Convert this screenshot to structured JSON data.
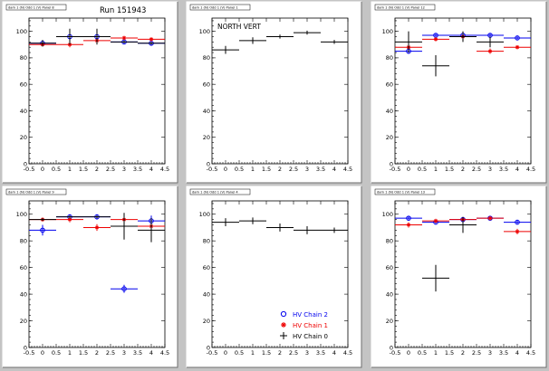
{
  "page": {
    "run_label": "Run 151943"
  },
  "legend": {
    "entries": [
      {
        "label": "HV Chain 2",
        "color": "#0000ee",
        "marker": "open-circle"
      },
      {
        "label": "HV Chain 1",
        "color": "#ee0000",
        "marker": "star"
      },
      {
        "label": "HV Chain 0",
        "color": "#000000",
        "marker": "cross"
      }
    ]
  },
  "chart_data": [
    {
      "type": "scatter",
      "title": "dam 1 (N) Odd 1 (V) Panel 8",
      "xlim": [
        -0.5,
        4.5
      ],
      "ylim": [
        0,
        110
      ],
      "xticks": [
        -0.5,
        0,
        0.5,
        1,
        1.5,
        2,
        2.5,
        3,
        3.5,
        4,
        4.5
      ],
      "yticks": [
        0,
        20,
        40,
        60,
        80,
        100
      ],
      "annotation": "",
      "series": [
        {
          "name": "HV Chain 2",
          "color": "#0000ee",
          "marker": "open-circle",
          "points": [
            [
              0,
              91,
              0.5,
              1.5
            ],
            [
              1,
              96,
              0.5,
              2
            ],
            [
              2,
              96,
              0.5,
              2
            ],
            [
              3,
              92,
              0.5,
              1.5
            ],
            [
              4,
              91,
              0.5,
              1.5
            ]
          ]
        },
        {
          "name": "HV Chain 1",
          "color": "#ee0000",
          "marker": "star",
          "points": [
            [
              0,
              90,
              0.5,
              1.5
            ],
            [
              1,
              90,
              0.5,
              2
            ],
            [
              2,
              93,
              0.5,
              1.5
            ],
            [
              3,
              95,
              0.5,
              1.5
            ],
            [
              4,
              94,
              0.5,
              1.5
            ]
          ]
        },
        {
          "name": "HV Chain 0",
          "color": "#000000",
          "marker": "cross",
          "points": [
            [
              0,
              91,
              0.5,
              2.5
            ],
            [
              1,
              96,
              0.5,
              6
            ],
            [
              2,
              96,
              0.5,
              6
            ],
            [
              3,
              92,
              0.5,
              1
            ],
            [
              4,
              91,
              0.5,
              1
            ]
          ]
        }
      ]
    },
    {
      "type": "scatter",
      "title": "dam 1 (N) Odd 1 (V) Panel 1",
      "xlim": [
        -0.5,
        4.5
      ],
      "ylim": [
        0,
        110
      ],
      "xticks": [
        -0.5,
        0,
        0.5,
        1,
        1.5,
        2,
        2.5,
        3,
        3.5,
        4,
        4.5
      ],
      "yticks": [
        0,
        20,
        40,
        60,
        80,
        100
      ],
      "annotation": "NORTH VERT",
      "series": [
        {
          "name": "HV Chain 0",
          "color": "#000000",
          "marker": "cross",
          "points": [
            [
              0,
              86,
              0.5,
              3
            ],
            [
              1,
              93,
              0.5,
              2.5
            ],
            [
              2,
              96,
              0.5,
              1.5
            ],
            [
              3,
              99,
              0.5,
              1.5
            ],
            [
              4,
              92,
              0.5,
              1.5
            ]
          ]
        }
      ]
    },
    {
      "type": "scatter",
      "title": "dam 1 (N) Odd 1 (V) Panel 12",
      "xlim": [
        -0.5,
        4.5
      ],
      "ylim": [
        0,
        110
      ],
      "xticks": [
        -0.5,
        0,
        0.5,
        1,
        1.5,
        2,
        2.5,
        3,
        3.5,
        4,
        4.5
      ],
      "yticks": [
        0,
        20,
        40,
        60,
        80,
        100
      ],
      "annotation": "",
      "series": [
        {
          "name": "HV Chain 2",
          "color": "#0000ee",
          "marker": "open-circle",
          "points": [
            [
              0,
              85,
              0.5,
              2
            ],
            [
              1,
              97,
              0.5,
              1.5
            ],
            [
              2,
              97,
              0.5,
              1.5
            ],
            [
              3,
              97,
              0.5,
              1.5
            ],
            [
              4,
              95,
              0.5,
              1.5
            ]
          ]
        },
        {
          "name": "HV Chain 1",
          "color": "#ee0000",
          "marker": "star",
          "points": [
            [
              0,
              88,
              0.5,
              2
            ],
            [
              1,
              94,
              0.5,
              1.5
            ],
            [
              2,
              96,
              0.5,
              1.5
            ],
            [
              3,
              85,
              0.5,
              2
            ],
            [
              4,
              88,
              0.5,
              1.5
            ]
          ]
        },
        {
          "name": "HV Chain 0",
          "color": "#000000",
          "marker": "cross",
          "points": [
            [
              0,
              92,
              0.5,
              8
            ],
            [
              1,
              74,
              0.5,
              8
            ],
            [
              2,
              96,
              0.5,
              4
            ],
            [
              3,
              92,
              0.5,
              4
            ]
          ]
        }
      ]
    },
    {
      "type": "scatter",
      "title": "dam 1 (N) Odd 1 (V) Panel 9",
      "xlim": [
        -0.5,
        4.5
      ],
      "ylim": [
        0,
        110
      ],
      "xticks": [
        -0.5,
        0,
        0.5,
        1,
        1.5,
        2,
        2.5,
        3,
        3.5,
        4,
        4.5
      ],
      "yticks": [
        0,
        20,
        40,
        60,
        80,
        100
      ],
      "annotation": "",
      "series": [
        {
          "name": "HV Chain 2",
          "color": "#0000ee",
          "marker": "open-circle",
          "points": [
            [
              0,
              88,
              0.5,
              4
            ],
            [
              1,
              98,
              0.5,
              2
            ],
            [
              2,
              98,
              0.5,
              2
            ],
            [
              3,
              44,
              0.5,
              3
            ],
            [
              4,
              95,
              0.5,
              4
            ]
          ]
        },
        {
          "name": "HV Chain 1",
          "color": "#ee0000",
          "marker": "star",
          "points": [
            [
              0,
              96,
              0.5,
              1.5
            ],
            [
              1,
              96,
              0.5,
              2
            ],
            [
              2,
              90,
              0.5,
              2.5
            ],
            [
              3,
              96,
              0.5,
              2.5
            ],
            [
              4,
              91,
              0.5,
              2.5
            ]
          ]
        },
        {
          "name": "HV Chain 0",
          "color": "#000000",
          "marker": "cross",
          "points": [
            [
              0,
              96,
              0.5,
              1
            ],
            [
              1,
              98,
              0.5,
              1
            ],
            [
              2,
              98,
              0.5,
              1
            ],
            [
              3,
              91,
              0.5,
              10
            ],
            [
              4,
              88,
              0.5,
              9
            ]
          ]
        }
      ]
    },
    {
      "type": "scatter",
      "title": "dam 1 (N) Odd 1 (V) Panel 4",
      "xlim": [
        -0.5,
        4.5
      ],
      "ylim": [
        0,
        110
      ],
      "xticks": [
        -0.5,
        0,
        0.5,
        1,
        1.5,
        2,
        2.5,
        3,
        3.5,
        4,
        4.5
      ],
      "yticks": [
        0,
        20,
        40,
        60,
        80,
        100
      ],
      "annotation": "",
      "series": [
        {
          "name": "HV Chain 0",
          "color": "#000000",
          "marker": "cross",
          "points": [
            [
              0,
              94,
              0.5,
              3
            ],
            [
              1,
              95,
              0.5,
              2.5
            ],
            [
              2,
              90,
              0.5,
              3
            ],
            [
              3,
              88,
              0.5,
              3
            ],
            [
              4,
              88,
              0.5,
              2
            ]
          ]
        }
      ]
    },
    {
      "type": "scatter",
      "title": "dam 1 (N) Odd 1 (V) Panel 13",
      "xlim": [
        -0.5,
        4.5
      ],
      "ylim": [
        0,
        110
      ],
      "xticks": [
        -0.5,
        0,
        0.5,
        1,
        1.5,
        2,
        2.5,
        3,
        3.5,
        4,
        4.5
      ],
      "yticks": [
        0,
        20,
        40,
        60,
        80,
        100
      ],
      "annotation": "",
      "series": [
        {
          "name": "HV Chain 2",
          "color": "#0000ee",
          "marker": "open-circle",
          "points": [
            [
              0,
              97,
              0.5,
              1.5
            ],
            [
              1,
              94,
              0.5,
              1.5
            ],
            [
              2,
              96,
              0.5,
              1.5
            ],
            [
              3,
              97,
              0.5,
              1.5
            ],
            [
              4,
              94,
              0.5,
              1.5
            ]
          ]
        },
        {
          "name": "HV Chain 1",
          "color": "#ee0000",
          "marker": "star",
          "points": [
            [
              0,
              92,
              0.5,
              2
            ],
            [
              1,
              95,
              0.5,
              1.5
            ],
            [
              2,
              96,
              0.5,
              1.5
            ],
            [
              3,
              97,
              0.5,
              1.5
            ],
            [
              4,
              87,
              0.5,
              2
            ]
          ]
        },
        {
          "name": "HV Chain 0",
          "color": "#000000",
          "marker": "cross",
          "points": [
            [
              1,
              52,
              0.5,
              10
            ],
            [
              2,
              92,
              0.5,
              6
            ]
          ]
        }
      ]
    }
  ]
}
